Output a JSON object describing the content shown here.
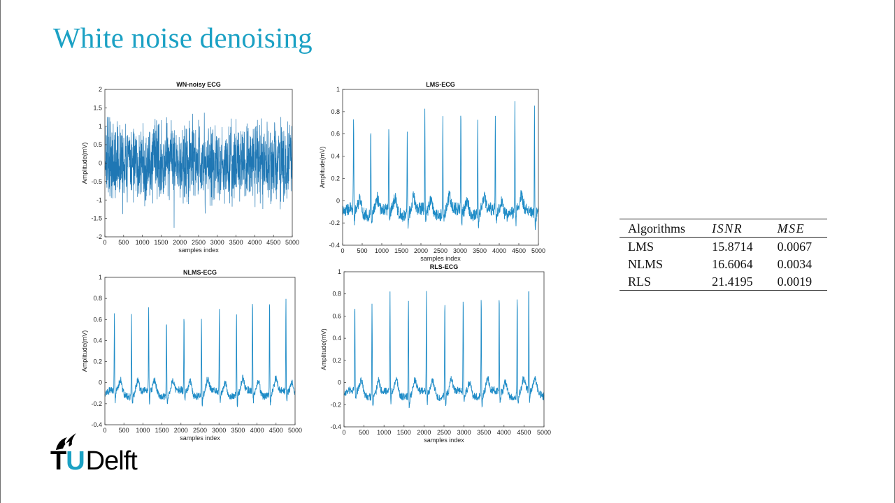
{
  "slide": {
    "title": "White noise denoising"
  },
  "chart_data": [
    {
      "type": "line",
      "title": "WN-noisy ECG",
      "xlabel": "samples index",
      "ylabel": "Amplitude(mV)",
      "xlim": [
        0,
        5000
      ],
      "ylim": [
        -2,
        2
      ],
      "xticks": [
        "0",
        "500",
        "1000",
        "1500",
        "2000",
        "2500",
        "3000",
        "3500",
        "4000",
        "4500",
        "5000"
      ],
      "yticks": [
        "2",
        "1.5",
        "1",
        "0.5",
        "0",
        "-0.5",
        "-1",
        "-1.5",
        "-2"
      ],
      "peaks": [],
      "color": "#1f77b4",
      "noise_amplitude": 1.8
    },
    {
      "type": "line",
      "title": "LMS-ECG",
      "xlabel": "samples index",
      "ylabel": "Amplitude(mV)",
      "xlim": [
        0,
        5000
      ],
      "ylim": [
        -0.4,
        1
      ],
      "xticks": [
        "0",
        "500",
        "1000",
        "1500",
        "2000",
        "2500",
        "3000",
        "3500",
        "4000",
        "4500",
        "5000"
      ],
      "yticks": [
        "1",
        "0.8",
        "0.6",
        "0.4",
        "0.2",
        "0",
        "-0.2",
        "-0.4"
      ],
      "peaks": [
        [
          280,
          0.85
        ],
        [
          720,
          0.84
        ],
        [
          1180,
          0.78
        ],
        [
          1650,
          0.75
        ],
        [
          2100,
          0.86
        ],
        [
          2560,
          0.88
        ],
        [
          3020,
          0.93
        ],
        [
          3450,
          0.87
        ],
        [
          3900,
          0.87
        ],
        [
          4400,
          0.98
        ],
        [
          4900,
          0.93
        ]
      ],
      "color": "#1f8cc7",
      "noise_amplitude": 0.06
    },
    {
      "type": "line",
      "title": "NLMS-ECG",
      "xlabel": "samples index",
      "ylabel": "Amplitude(mV)",
      "xlim": [
        0,
        5000
      ],
      "ylim": [
        -0.4,
        1
      ],
      "xticks": [
        "0",
        "500",
        "1000",
        "1500",
        "2000",
        "2500",
        "3000",
        "3500",
        "4000",
        "4500",
        "5000"
      ],
      "yticks": [
        "1",
        "0.8",
        "0.6",
        "0.4",
        "0.2",
        "0",
        "-0.2",
        "-0.4"
      ],
      "peaks": [
        [
          250,
          0.77
        ],
        [
          700,
          0.77
        ],
        [
          1150,
          0.8
        ],
        [
          1620,
          0.77
        ],
        [
          2080,
          0.77
        ],
        [
          2540,
          0.76
        ],
        [
          3010,
          0.8
        ],
        [
          3460,
          0.76
        ],
        [
          3880,
          0.93
        ],
        [
          4330,
          0.96
        ],
        [
          4760,
          0.93
        ]
      ],
      "color": "#1f8cc7",
      "noise_amplitude": 0.035
    },
    {
      "type": "line",
      "title": "RLS-ECG",
      "xlabel": "samples index",
      "ylabel": "Amplitude(mV)",
      "xlim": [
        0,
        5000
      ],
      "ylim": [
        -0.4,
        1
      ],
      "xticks": [
        "0",
        "500",
        "1000",
        "1500",
        "2000",
        "2500",
        "3000",
        "3500",
        "4000",
        "4500",
        "5000"
      ],
      "yticks": [
        "1",
        "0.8",
        "0.6",
        "0.4",
        "0.2",
        "0",
        "-0.2",
        "-0.4"
      ],
      "peaks": [
        [
          270,
          0.83
        ],
        [
          700,
          0.88
        ],
        [
          1150,
          0.91
        ],
        [
          1610,
          0.92
        ],
        [
          2060,
          0.92
        ],
        [
          2520,
          0.91
        ],
        [
          2980,
          0.9
        ],
        [
          3430,
          0.93
        ],
        [
          3880,
          0.92
        ],
        [
          4330,
          0.96
        ],
        [
          4620,
          1.0
        ]
      ],
      "color": "#1f8cc7",
      "noise_amplitude": 0.035
    }
  ],
  "table": {
    "headers": [
      "Algorithms",
      "ISNR",
      "MSE"
    ],
    "rows": [
      [
        "LMS",
        "15.8714",
        "0.0067"
      ],
      [
        "NLMS",
        "16.6064",
        "0.0034"
      ],
      [
        "RLS",
        "21.4195",
        "0.0019"
      ]
    ]
  },
  "logo": {
    "t": "T",
    "u": "U",
    "name": "Delft"
  }
}
